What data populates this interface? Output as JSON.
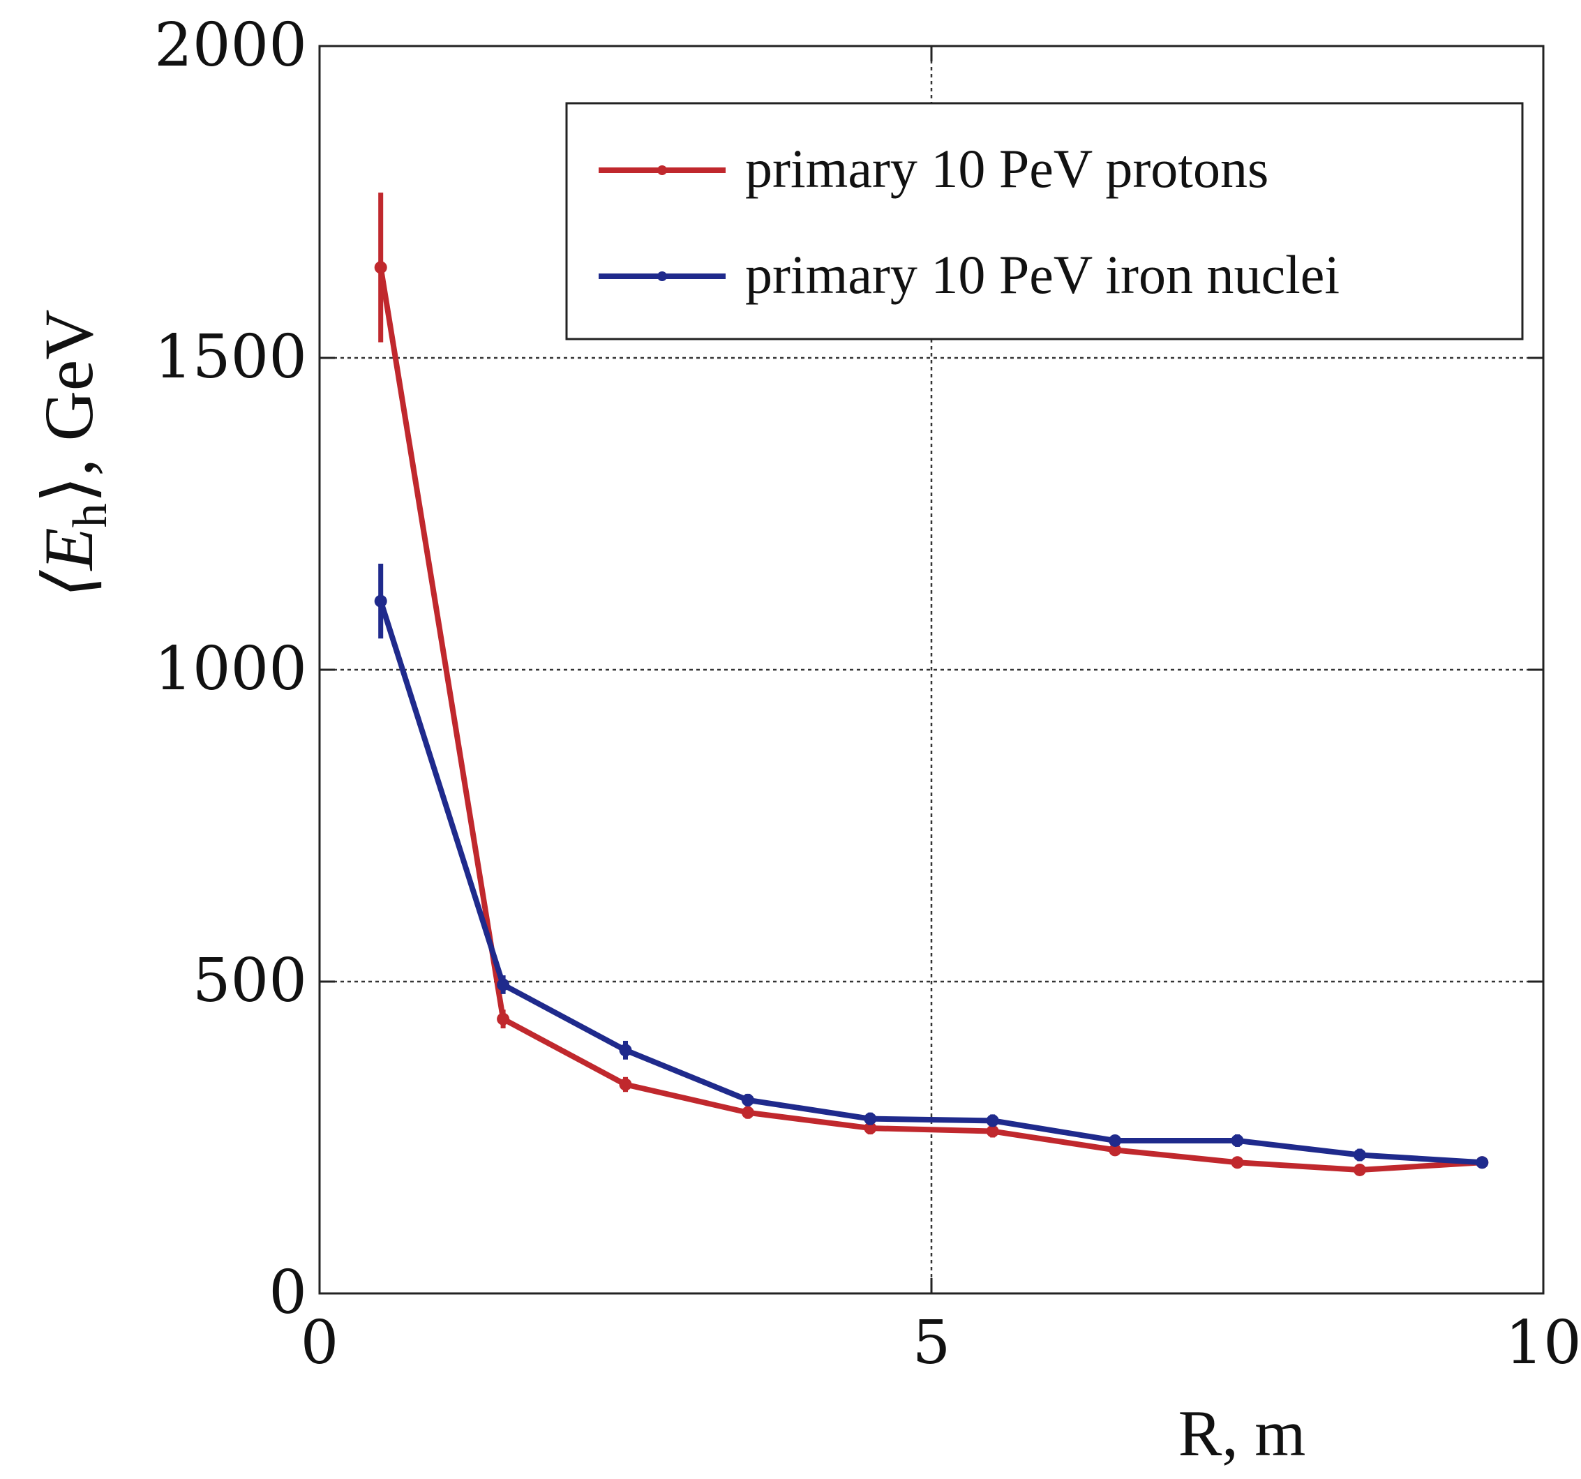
{
  "chart_data": {
    "type": "line",
    "title": "",
    "xlabel": "R, m",
    "ylabel": "⟨E",
    "ylabel_sub": "h",
    "ylabel_suffix": "⟩, GeV",
    "xlim": [
      0,
      10
    ],
    "ylim": [
      0,
      2000
    ],
    "x_ticks": [
      0,
      5,
      10
    ],
    "y_ticks": [
      0,
      500,
      1000,
      1500,
      2000
    ],
    "grid": true,
    "legend_position": "top-right",
    "series": [
      {
        "name": "primary 10 PeV protons",
        "color": "#c0282d",
        "x": [
          0.5,
          1.5,
          2.5,
          3.5,
          4.5,
          5.5,
          6.5,
          7.5,
          8.5,
          9.5
        ],
        "y": [
          1645,
          440,
          335,
          290,
          265,
          260,
          230,
          210,
          198,
          210
        ],
        "err": [
          120,
          15,
          12,
          10,
          10,
          10,
          8,
          8,
          8,
          8
        ]
      },
      {
        "name": "primary 10 PeV iron nuclei",
        "color": "#1f2a8c",
        "x": [
          0.5,
          1.5,
          2.5,
          3.5,
          4.5,
          5.5,
          6.5,
          7.5,
          8.5,
          9.5
        ],
        "y": [
          1110,
          495,
          390,
          310,
          280,
          277,
          245,
          245,
          222,
          210
        ],
        "err": [
          60,
          15,
          15,
          10,
          10,
          10,
          8,
          10,
          10,
          8
        ]
      }
    ]
  }
}
